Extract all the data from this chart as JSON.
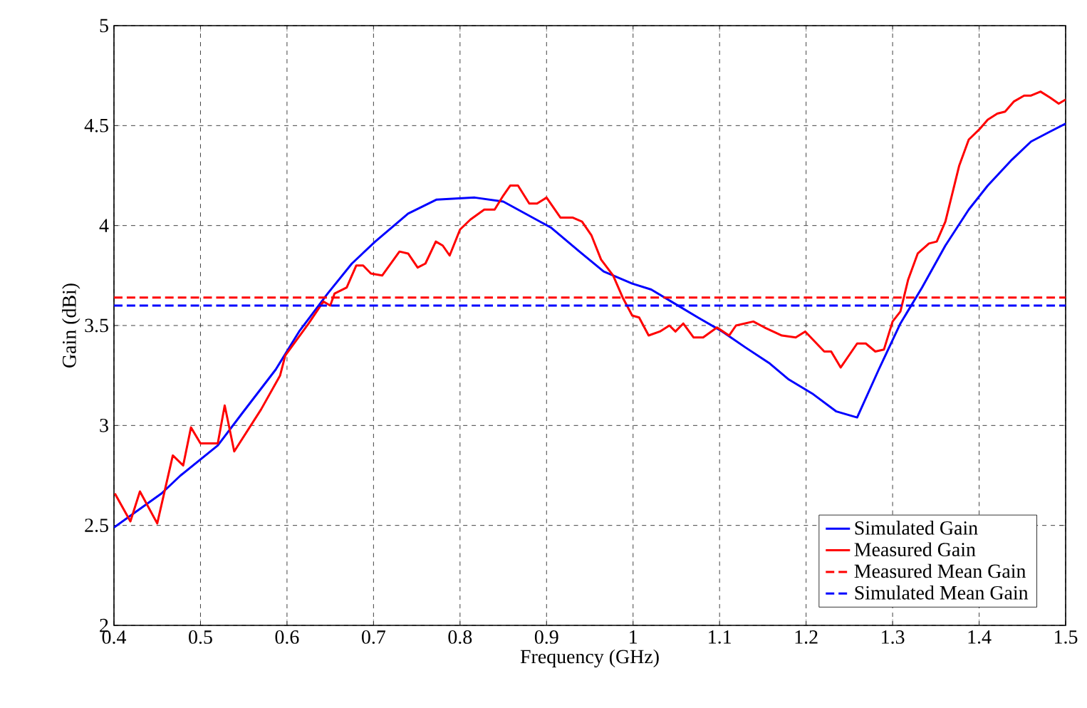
{
  "chart_data": {
    "type": "line",
    "xlabel": "Frequency (GHz)",
    "ylabel": "Gain (dBi)",
    "xlim": [
      0.4,
      1.5
    ],
    "ylim": [
      2,
      5
    ],
    "xticks": [
      0.4,
      0.5,
      0.6,
      0.7,
      0.8,
      0.9,
      1,
      1.1,
      1.2,
      1.3,
      1.4,
      1.5
    ],
    "yticks": [
      2,
      2.5,
      3,
      3.5,
      4,
      4.5,
      5
    ],
    "grid": true,
    "legend": "bottom right",
    "marker": "none",
    "line_style": "solid",
    "series": [
      {
        "name": "Simulated Gain",
        "color": "#0000ff",
        "x": [
          0.4,
          0.455,
          0.477,
          0.52,
          0.548,
          0.587,
          0.614,
          0.647,
          0.675,
          0.702,
          0.74,
          0.773,
          0.817,
          0.85,
          0.905,
          0.938,
          0.966,
          0.999,
          1.021,
          1.048,
          1.075,
          1.103,
          1.13,
          1.158,
          1.18,
          1.207,
          1.235,
          1.259,
          1.284,
          1.309,
          1.334,
          1.361,
          1.388,
          1.41,
          1.438,
          1.46,
          1.482,
          1.5
        ],
        "values": [
          2.49,
          2.66,
          2.75,
          2.9,
          3.06,
          3.28,
          3.47,
          3.66,
          3.81,
          3.92,
          4.06,
          4.13,
          4.14,
          4.12,
          3.99,
          3.87,
          3.77,
          3.71,
          3.68,
          3.61,
          3.54,
          3.47,
          3.39,
          3.31,
          3.23,
          3.16,
          3.07,
          3.04,
          3.28,
          3.51,
          3.69,
          3.9,
          4.08,
          4.2,
          4.33,
          4.42,
          4.47,
          4.51
        ]
      },
      {
        "name": "Measured Gain",
        "color": "#ff0000",
        "x": [
          0.401,
          0.419,
          0.43,
          0.45,
          0.468,
          0.48,
          0.489,
          0.5,
          0.52,
          0.528,
          0.539,
          0.57,
          0.592,
          0.598,
          0.625,
          0.642,
          0.65,
          0.655,
          0.669,
          0.68,
          0.688,
          0.697,
          0.71,
          0.73,
          0.74,
          0.751,
          0.76,
          0.772,
          0.78,
          0.788,
          0.8,
          0.812,
          0.828,
          0.84,
          0.85,
          0.858,
          0.867,
          0.88,
          0.889,
          0.9,
          0.916,
          0.93,
          0.941,
          0.952,
          0.963,
          0.977,
          0.988,
          0.999,
          1.007,
          1.018,
          1.031,
          1.042,
          1.049,
          1.058,
          1.07,
          1.081,
          1.097,
          1.111,
          1.119,
          1.139,
          1.152,
          1.172,
          1.188,
          1.199,
          1.21,
          1.221,
          1.229,
          1.24,
          1.259,
          1.269,
          1.28,
          1.29,
          1.3,
          1.309,
          1.318,
          1.329,
          1.342,
          1.351,
          1.361,
          1.377,
          1.388,
          1.4,
          1.41,
          1.421,
          1.43,
          1.44,
          1.452,
          1.46,
          1.471,
          1.482,
          1.492,
          1.5
        ],
        "values": [
          2.66,
          2.52,
          2.67,
          2.51,
          2.85,
          2.8,
          2.99,
          2.91,
          2.91,
          3.1,
          2.87,
          3.08,
          3.25,
          3.35,
          3.51,
          3.62,
          3.6,
          3.66,
          3.69,
          3.8,
          3.8,
          3.76,
          3.75,
          3.87,
          3.86,
          3.79,
          3.81,
          3.92,
          3.9,
          3.85,
          3.98,
          4.03,
          4.08,
          4.08,
          4.15,
          4.2,
          4.2,
          4.11,
          4.11,
          4.14,
          4.04,
          4.04,
          4.02,
          3.95,
          3.83,
          3.75,
          3.64,
          3.55,
          3.54,
          3.45,
          3.47,
          3.5,
          3.47,
          3.51,
          3.44,
          3.44,
          3.49,
          3.45,
          3.5,
          3.52,
          3.49,
          3.45,
          3.44,
          3.47,
          3.42,
          3.37,
          3.37,
          3.29,
          3.41,
          3.41,
          3.37,
          3.38,
          3.52,
          3.57,
          3.73,
          3.86,
          3.91,
          3.92,
          4.02,
          4.3,
          4.43,
          4.48,
          4.53,
          4.56,
          4.57,
          4.62,
          4.65,
          4.65,
          4.67,
          4.64,
          4.61,
          4.63
        ]
      }
    ],
    "ref_lines": [
      {
        "axis": "y",
        "value": 3.64,
        "label": "Measured Mean Gain",
        "color": "#ff0000",
        "line_style": "dashed"
      },
      {
        "axis": "y",
        "value": 3.6,
        "label": "Simulated Mean Gain",
        "color": "#0000ff",
        "line_style": "dashed"
      }
    ]
  }
}
